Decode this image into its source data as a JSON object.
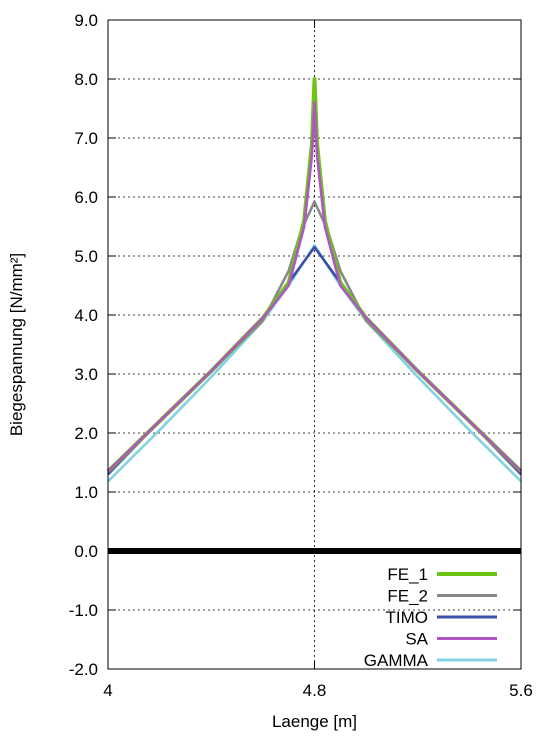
{
  "chart_data": {
    "type": "line",
    "xlabel": "Laenge [m]",
    "ylabel": "Biegespannung [N/mm²]",
    "xlim": [
      4.0,
      5.6
    ],
    "ylim": [
      -2.0,
      9.0
    ],
    "x_ticks": [
      "4",
      "4.8",
      "5.6"
    ],
    "y_ticks": [
      "-2.0",
      "-1.0",
      "0.0",
      "1.0",
      "2.0",
      "3.0",
      "4.0",
      "5.0",
      "6.0",
      "7.0",
      "8.0",
      "9.0"
    ],
    "grid": "horizontal dotted at y ticks, vertical dotted at x=4.8",
    "zero_line": 0.0,
    "legend_position": "bottom-right",
    "series": [
      {
        "name": "FE_1",
        "color": "#6cc417",
        "x": [
          4.0,
          4.2,
          4.4,
          4.6,
          4.7,
          4.76,
          4.79,
          4.8,
          4.81,
          4.84,
          4.9,
          5.0,
          5.2,
          5.4,
          5.6
        ],
        "y": [
          1.35,
          2.2,
          3.05,
          3.95,
          4.55,
          5.6,
          6.9,
          8.0,
          6.9,
          5.6,
          4.55,
          3.95,
          3.05,
          2.2,
          1.35
        ]
      },
      {
        "name": "FE_2",
        "color": "#888888",
        "x": [
          4.0,
          4.2,
          4.4,
          4.6,
          4.7,
          4.75,
          4.8,
          4.85,
          4.9,
          5.0,
          5.2,
          5.4,
          5.6
        ],
        "y": [
          1.35,
          2.2,
          3.05,
          3.9,
          4.75,
          5.45,
          5.92,
          5.45,
          4.75,
          3.9,
          3.05,
          2.2,
          1.35
        ]
      },
      {
        "name": "TIMO",
        "color": "#3b4fa8",
        "x": [
          4.0,
          4.2,
          4.4,
          4.6,
          4.7,
          4.8,
          4.9,
          5.0,
          5.2,
          5.4,
          5.6
        ],
        "y": [
          1.3,
          2.2,
          3.05,
          3.95,
          4.55,
          5.15,
          4.55,
          3.95,
          3.05,
          2.2,
          1.3
        ]
      },
      {
        "name": "SA",
        "color": "#b056c4",
        "x": [
          4.0,
          4.2,
          4.4,
          4.6,
          4.7,
          4.76,
          4.79,
          4.8,
          4.81,
          4.84,
          4.9,
          5.0,
          5.2,
          5.4,
          5.6
        ],
        "y": [
          1.35,
          2.2,
          3.05,
          3.95,
          4.5,
          5.5,
          6.7,
          7.6,
          6.7,
          5.5,
          4.5,
          3.95,
          3.05,
          2.2,
          1.35
        ]
      },
      {
        "name": "GAMMA",
        "color": "#82d2e0",
        "x": [
          4.0,
          4.2,
          4.4,
          4.6,
          4.7,
          4.8,
          4.9,
          5.0,
          5.2,
          5.4,
          5.6
        ],
        "y": [
          1.18,
          2.05,
          2.95,
          3.9,
          4.5,
          5.18,
          4.5,
          3.9,
          2.95,
          2.05,
          1.18
        ]
      }
    ]
  }
}
